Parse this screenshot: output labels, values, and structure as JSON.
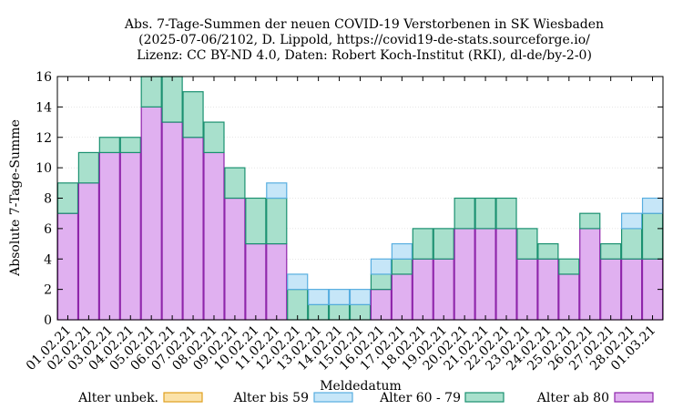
{
  "chart_data": {
    "type": "bar",
    "stacked": true,
    "title_lines": [
      "Abs. 7-Tage-Summen der neuen COVID-19 Verstorbenen in SK Wiesbaden",
      "(2025-07-06/2102, D. Lippold, https://covid19-de-stats.sourceforge.io/",
      "Lizenz: CC BY-ND 4.0, Daten: Robert Koch-Institut (RKI), dl-de/by-2-0)"
    ],
    "xlabel": "Meldedatum",
    "ylabel": "Absolute 7-Tage-Summe",
    "ylim": [
      0,
      16
    ],
    "yticks": [
      0,
      2,
      4,
      6,
      8,
      10,
      12,
      14,
      16
    ],
    "categories": [
      "01.02.21",
      "02.02.21",
      "03.02.21",
      "04.02.21",
      "05.02.21",
      "06.02.21",
      "07.02.21",
      "08.02.21",
      "09.02.21",
      "10.02.21",
      "11.02.21",
      "12.02.21",
      "13.02.21",
      "14.02.21",
      "15.02.21",
      "16.02.21",
      "17.02.21",
      "18.02.21",
      "19.02.21",
      "20.02.21",
      "21.02.21",
      "22.02.21",
      "23.02.21",
      "24.02.21",
      "25.02.21",
      "26.02.21",
      "27.02.21",
      "28.02.21",
      "01.03.21"
    ],
    "series": [
      {
        "name": "Alter ab 80",
        "color": "#e0b0f0",
        "stroke": "#8e24aa",
        "values": [
          7,
          9,
          11,
          11,
          14,
          13,
          12,
          11,
          8,
          5,
          5,
          0,
          0,
          0,
          0,
          2,
          3,
          4,
          4,
          6,
          6,
          6,
          4,
          4,
          3,
          6,
          4,
          4,
          4
        ]
      },
      {
        "name": "Alter 60 - 79",
        "color": "#a8e0cc",
        "stroke": "#1a9070",
        "values": [
          2,
          2,
          1,
          1,
          2,
          3,
          3,
          2,
          2,
          3,
          3,
          2,
          1,
          1,
          1,
          1,
          1,
          2,
          2,
          2,
          2,
          2,
          2,
          1,
          1,
          1,
          1,
          2,
          3
        ]
      },
      {
        "name": "Alter bis 59",
        "color": "#c6e6f8",
        "stroke": "#58aee0",
        "values": [
          0,
          0,
          0,
          0,
          0,
          0,
          0,
          0,
          0,
          0,
          1,
          1,
          1,
          1,
          1,
          1,
          1,
          0,
          0,
          0,
          0,
          0,
          0,
          0,
          0,
          0,
          0,
          1,
          1
        ]
      },
      {
        "name": "Alter unbek.",
        "color": "#fbe2a8",
        "stroke": "#e0a020",
        "values": [
          0,
          0,
          0,
          0,
          0,
          0,
          0,
          0,
          0,
          0,
          0,
          0,
          0,
          0,
          0,
          0,
          0,
          0,
          0,
          0,
          0,
          0,
          0,
          0,
          0,
          0,
          0,
          0,
          0
        ]
      }
    ],
    "legend_order": [
      3,
      2,
      1,
      0
    ],
    "legend_position": "bottom"
  }
}
